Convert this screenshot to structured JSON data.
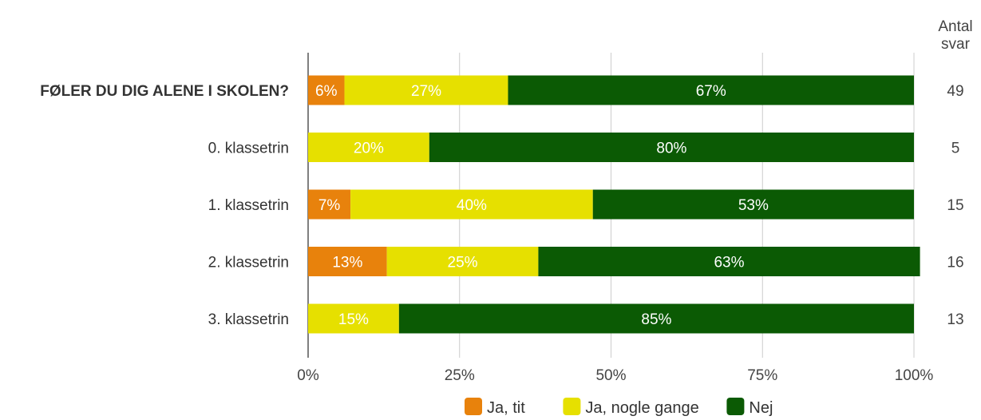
{
  "chart_data": {
    "type": "bar",
    "orientation": "horizontal",
    "stacked": true,
    "percent_stacked": true,
    "categories": [
      "FØLER DU DIG ALENE I SKOLEN?",
      "0. klassetrin",
      "1. klassetrin",
      "2. klassetrin",
      "3. klassetrin"
    ],
    "category_bold": [
      true,
      false,
      false,
      false,
      false
    ],
    "series": [
      {
        "name": "Ja, tit",
        "color": "#e8820c",
        "values": [
          6,
          0,
          7,
          13,
          0
        ],
        "labels": [
          "6%",
          "",
          "7%",
          "13%",
          ""
        ]
      },
      {
        "name": "Ja, nogle gange",
        "color": "#e6e000",
        "values": [
          27,
          20,
          40,
          25,
          15
        ],
        "labels": [
          "27%",
          "20%",
          "40%",
          "25%",
          "15%"
        ]
      },
      {
        "name": "Nej",
        "color": "#0b5a04",
        "values": [
          67,
          80,
          53,
          63,
          85
        ],
        "labels": [
          "67%",
          "80%",
          "53%",
          "63%",
          "85%"
        ]
      }
    ],
    "xlim": [
      0,
      100
    ],
    "x_ticks": [
      0,
      25,
      50,
      75,
      100
    ],
    "x_tick_labels": [
      "0%",
      "25%",
      "50%",
      "75%",
      "100%"
    ],
    "grid": true,
    "legend_position": "bottom",
    "count_header": [
      "Antal",
      "svar"
    ],
    "counts": [
      "49",
      "5",
      "15",
      "16",
      "13"
    ]
  }
}
